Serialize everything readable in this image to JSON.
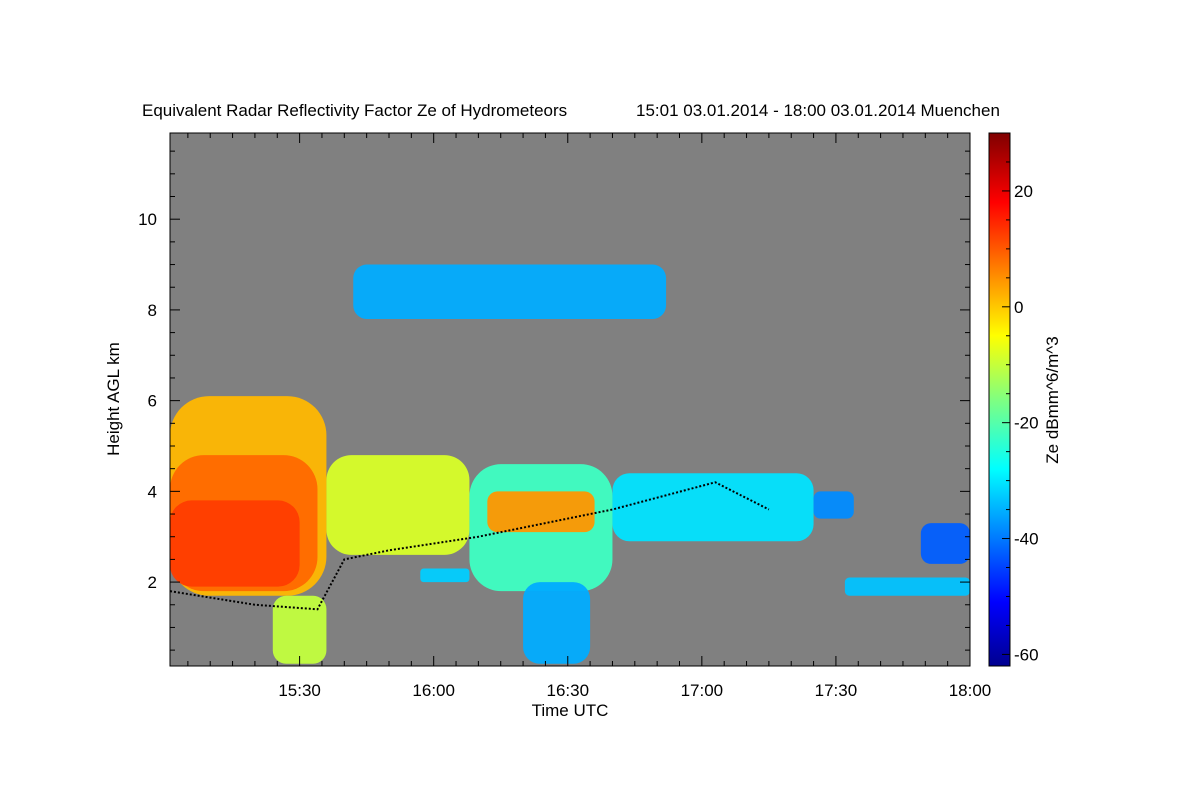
{
  "chart_data": {
    "type": "heatmap",
    "title": "Equivalent Radar Reflectivity Factor Ze of Hydrometeors",
    "subtitle": "15:01 03.01.2014 - 18:00 03.01.2014 Muenchen",
    "xlabel": "Time UTC",
    "ylabel": "Height AGL km",
    "colorbar_label": "Ze dBmm^6/m^3",
    "x_ticks": [
      "15:30",
      "16:00",
      "16:30",
      "17:00",
      "17:30",
      "18:00"
    ],
    "x_tick_minutes": [
      30,
      60,
      90,
      120,
      150,
      180
    ],
    "xlim_minutes": [
      1,
      180
    ],
    "y_ticks": [
      "2",
      "4",
      "6",
      "8",
      "10"
    ],
    "ylim": [
      0.15,
      11.9
    ],
    "colorbar_ticks": [
      "20",
      "0",
      "-20",
      "-40",
      "-60"
    ],
    "colorbar_range": [
      -62,
      30
    ],
    "background_color": "#808080",
    "echoes": [
      {
        "t0": 1,
        "t1": 36,
        "z0": 1.7,
        "z1": 6.1,
        "ze": 2
      },
      {
        "t0": 1,
        "t1": 34,
        "z0": 1.8,
        "z1": 4.8,
        "ze": 9
      },
      {
        "t0": 1,
        "t1": 30,
        "z0": 1.9,
        "z1": 3.8,
        "ze": 13
      },
      {
        "t0": 36,
        "t1": 68,
        "z0": 2.6,
        "z1": 4.8,
        "ze": -8
      },
      {
        "t0": 68,
        "t1": 100,
        "z0": 1.8,
        "z1": 4.6,
        "ze": -22
      },
      {
        "t0": 72,
        "t1": 96,
        "z0": 3.1,
        "z1": 4.0,
        "ze": 5
      },
      {
        "t0": 100,
        "t1": 145,
        "z0": 2.9,
        "z1": 4.4,
        "ze": -30
      },
      {
        "t0": 145,
        "t1": 154,
        "z0": 3.4,
        "z1": 4.0,
        "ze": -38
      },
      {
        "t0": 24,
        "t1": 36,
        "z0": 0.2,
        "z1": 1.7,
        "ze": -10
      },
      {
        "t0": 80,
        "t1": 95,
        "z0": 0.2,
        "z1": 2.0,
        "ze": -35
      },
      {
        "t0": 57,
        "t1": 68,
        "z0": 2.0,
        "z1": 2.3,
        "ze": -32
      },
      {
        "t0": 152,
        "t1": 180,
        "z0": 1.7,
        "z1": 2.1,
        "ze": -33
      },
      {
        "t0": 169,
        "t1": 180,
        "z0": 2.4,
        "z1": 3.3,
        "ze": -42
      },
      {
        "t0": 42,
        "t1": 112,
        "z0": 7.8,
        "z1": 9.0,
        "ze": -35
      }
    ],
    "cloud_base_line": [
      {
        "t": 1,
        "z": 1.8
      },
      {
        "t": 20,
        "z": 1.5
      },
      {
        "t": 34,
        "z": 1.4
      },
      {
        "t": 40,
        "z": 2.5
      },
      {
        "t": 50,
        "z": 2.7
      },
      {
        "t": 70,
        "z": 3.0
      },
      {
        "t": 100,
        "z": 3.6
      },
      {
        "t": 123,
        "z": 4.2
      },
      {
        "t": 135,
        "z": 3.6
      }
    ]
  }
}
